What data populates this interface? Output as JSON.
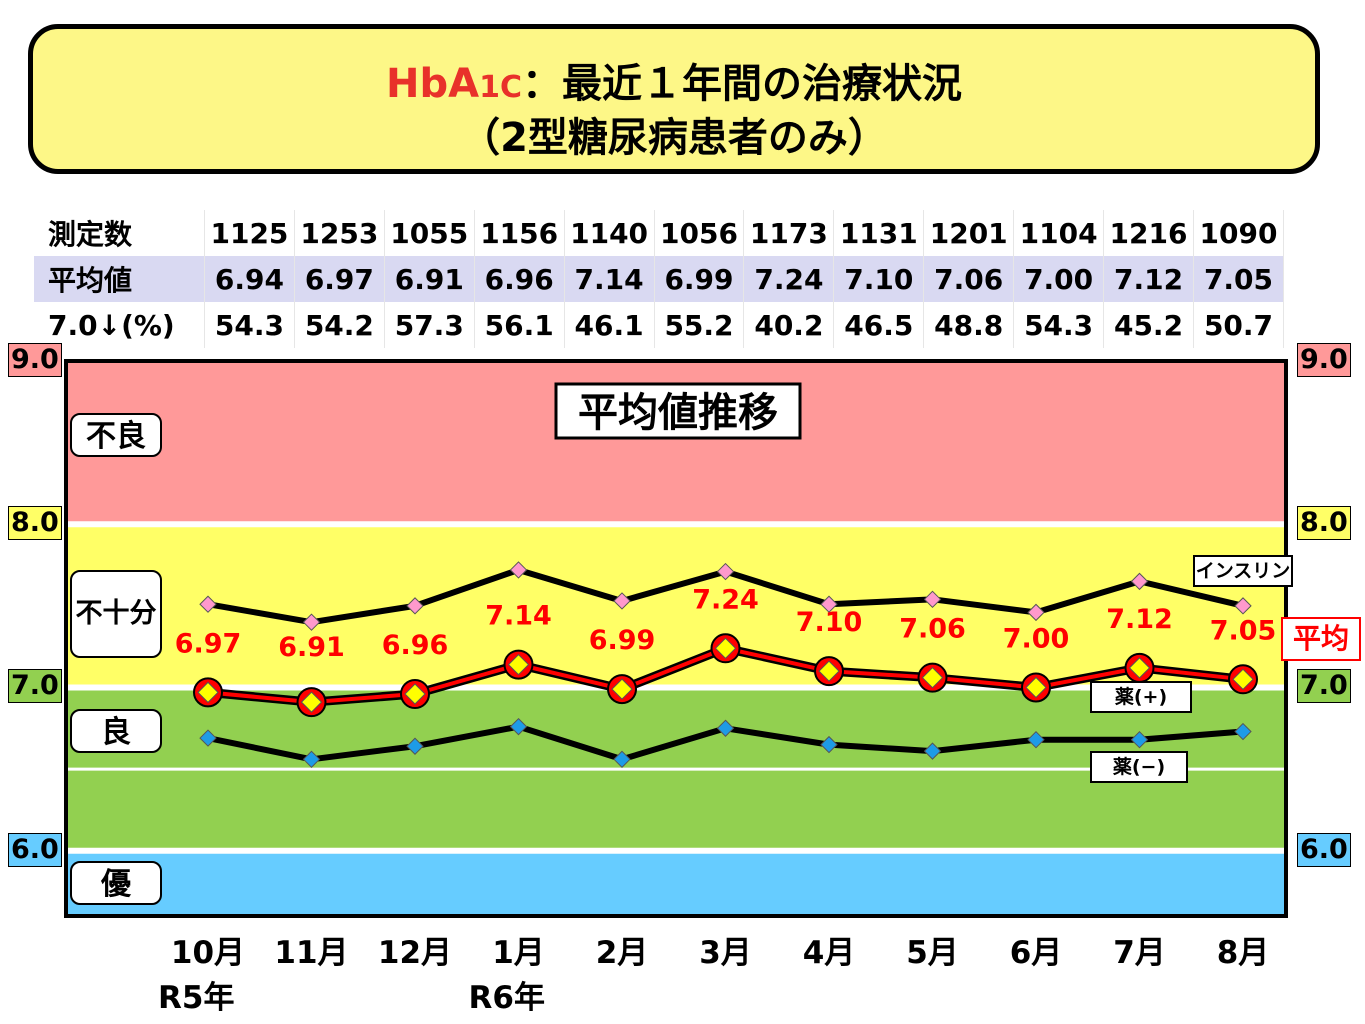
{
  "title": {
    "hb": "HbA",
    "hb_sub": "1C",
    "rest": "：最近１年間の治療状況",
    "line2": "（2型糖尿病患者のみ）"
  },
  "stats": {
    "rows": [
      {
        "label": "測定数",
        "values": [
          "1125",
          "1253",
          "1055",
          "1156",
          "1140",
          "1056",
          "1173",
          "1131",
          "1201",
          "1104",
          "1216",
          "1090"
        ]
      },
      {
        "label": "平均値",
        "values": [
          "6.94",
          "6.97",
          "6.91",
          "6.96",
          "7.14",
          "6.99",
          "7.24",
          "7.10",
          "7.06",
          "7.00",
          "7.12",
          "7.05"
        ]
      },
      {
        "label": "7.0↓(%)",
        "values": [
          "54.3",
          "54.2",
          "57.3",
          "56.1",
          "46.1",
          "55.2",
          "40.2",
          "46.5",
          "48.8",
          "54.3",
          "45.2",
          "50.7"
        ]
      }
    ]
  },
  "colors": {
    "poor": "#ff9999",
    "insufficient": "#ffff66",
    "good": "#92d050",
    "excellent": "#66ccff",
    "average_line": "#ff0000",
    "average_label": "#ff0000",
    "insulin_marker": "#ff99cc",
    "drug_plus_marker": "#ffff00",
    "drug_minus_marker": "#1e9be6"
  },
  "chart_data": {
    "type": "line",
    "title": "平均値推移",
    "x": [
      "10月",
      "11月",
      "12月",
      "1月",
      "2月",
      "3月",
      "4月",
      "5月",
      "6月",
      "7月",
      "8月"
    ],
    "year_labels": [
      {
        "label": "R5年",
        "at": "10月"
      },
      {
        "label": "R6年",
        "at": "1月"
      }
    ],
    "ylim": [
      5.6,
      9.0
    ],
    "y_ticks": [
      "9.0",
      "8.0",
      "7.0",
      "6.0"
    ],
    "bands": [
      {
        "label": "不良",
        "from": 8.0,
        "to": 9.0,
        "color": "poor"
      },
      {
        "label": "不十分",
        "from": 7.0,
        "to": 8.0,
        "color": "insufficient"
      },
      {
        "label": "良",
        "from": 6.0,
        "to": 7.0,
        "color": "good"
      },
      {
        "label": "優",
        "from": 5.6,
        "to": 6.0,
        "color": "excellent"
      }
    ],
    "reference_lines": [
      6.5
    ],
    "series": [
      {
        "name": "インスリン",
        "marker": "insulin_marker",
        "values": [
          7.51,
          7.4,
          7.5,
          7.72,
          7.53,
          7.71,
          7.51,
          7.54,
          7.46,
          7.65,
          7.5
        ]
      },
      {
        "name": "平均",
        "marker": "average_line",
        "labeled": true,
        "values": [
          6.97,
          6.91,
          6.96,
          7.14,
          6.99,
          7.24,
          7.1,
          7.06,
          7.0,
          7.12,
          7.05
        ],
        "value_labels": [
          "6.97",
          "6.91",
          "6.96",
          "7.14",
          "6.99",
          "7.24",
          "7.10",
          "7.06",
          "7.00",
          "7.12",
          "7.05"
        ]
      },
      {
        "name": "薬(+)",
        "marker": "drug_plus_marker",
        "values": [
          6.97,
          6.91,
          6.96,
          7.14,
          6.99,
          7.24,
          7.1,
          7.06,
          7.0,
          7.12,
          7.05
        ]
      },
      {
        "name": "薬(−)",
        "marker": "drug_minus_marker",
        "values": [
          6.69,
          6.56,
          6.64,
          6.76,
          6.56,
          6.75,
          6.65,
          6.61,
          6.68,
          6.68,
          6.73
        ]
      }
    ]
  }
}
